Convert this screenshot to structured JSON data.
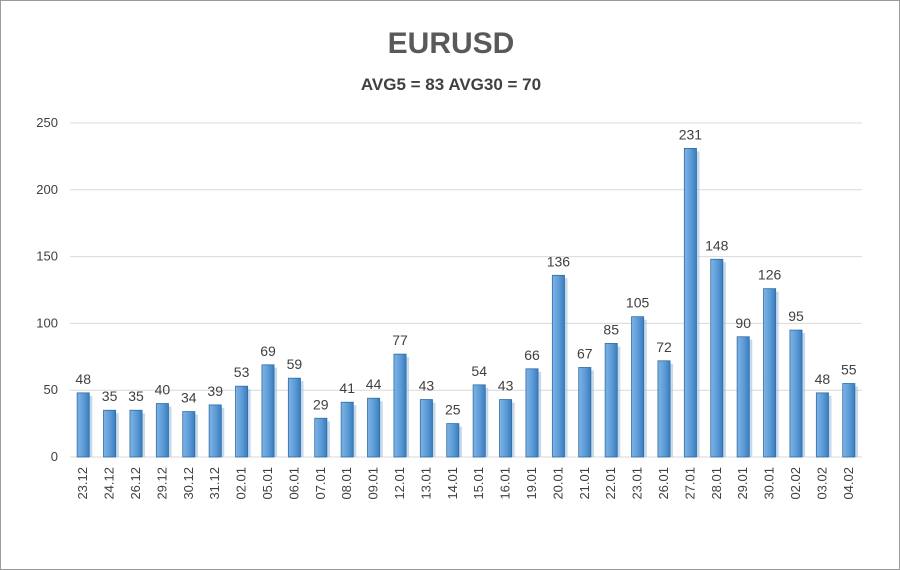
{
  "chart_data": {
    "type": "bar",
    "title": "EURUSD",
    "subtitle": "AVG5 = 83 AVG30 = 70",
    "categories": [
      "23.12",
      "24.12",
      "26.12",
      "29.12",
      "30.12",
      "31.12",
      "02.01",
      "05.01",
      "06.01",
      "07.01",
      "08.01",
      "09.01",
      "12.01",
      "13.01",
      "14.01",
      "15.01",
      "16.01",
      "19.01",
      "20.01",
      "21.01",
      "22.01",
      "23.01",
      "26.01",
      "27.01",
      "28.01",
      "29.01",
      "30.01",
      "02.02",
      "03.02",
      "04.02"
    ],
    "values": [
      48,
      35,
      35,
      40,
      34,
      39,
      53,
      69,
      59,
      29,
      41,
      44,
      77,
      43,
      25,
      54,
      43,
      66,
      136,
      67,
      85,
      105,
      72,
      231,
      148,
      90,
      126,
      95,
      48,
      55
    ],
    "ylim": [
      0,
      250
    ],
    "yticks": [
      0,
      50,
      100,
      150,
      200,
      250
    ],
    "xlabel": "",
    "ylabel": "",
    "grid": true,
    "colors": {
      "bar": "#5b9bd5",
      "bar_dark": "#2e6da4",
      "grid": "#d9d9d9",
      "text": "#404040"
    }
  }
}
